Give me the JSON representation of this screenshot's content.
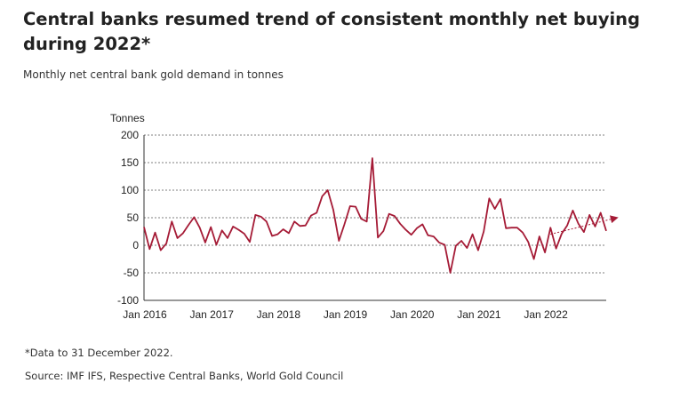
{
  "header": {
    "title": "Central banks resumed trend of consistent monthly net buying during 2022*",
    "subtitle": "Monthly net central bank gold demand in tonnes"
  },
  "footer": {
    "note": "*Data to 31 December 2022.",
    "source": "Source: IMF IFS, Respective Central Banks, World Gold Council"
  },
  "chart_data": {
    "type": "line",
    "ylabel": "Tonnes",
    "ylim": [
      -100,
      200
    ],
    "yticks": [
      -100,
      -50,
      0,
      50,
      100,
      150,
      200
    ],
    "ytick_labels": [
      "-100",
      "-50",
      "0",
      "50",
      "100",
      "150",
      "200"
    ],
    "xtick_labels": [
      "Jan 2016",
      "Jan 2017",
      "Jan 2018",
      "Jan 2019",
      "Jan 2020",
      "Jan 2021",
      "Jan 2022"
    ],
    "grid": "horizontal dashed",
    "x_start": "2016-01",
    "x_end": "2022-12",
    "line_color": "#a51b36",
    "series": [
      {
        "values": [
          33,
          -7,
          23,
          -9,
          3,
          43,
          13,
          22,
          37,
          51,
          32,
          5,
          33,
          1,
          27,
          13,
          34,
          28,
          21,
          6,
          55,
          52,
          43,
          17,
          20,
          29,
          22,
          43,
          35,
          36,
          54,
          59,
          89,
          100,
          64,
          8,
          38,
          71,
          70,
          48,
          43,
          158,
          14,
          26,
          57,
          53,
          39,
          28,
          19,
          31,
          38,
          18,
          16,
          5,
          1,
          -50,
          -1,
          8,
          -5,
          20,
          -9,
          25,
          85,
          66,
          84,
          31,
          32,
          32,
          23,
          6,
          -25,
          16,
          -13,
          32,
          -6,
          21,
          36,
          63,
          39,
          24,
          55,
          34,
          59,
          26
        ]
      }
    ],
    "trend_arrow": {
      "from": [
        "2022-02",
        20
      ],
      "to": [
        "2022-12",
        50
      ],
      "style": "dashed"
    }
  }
}
